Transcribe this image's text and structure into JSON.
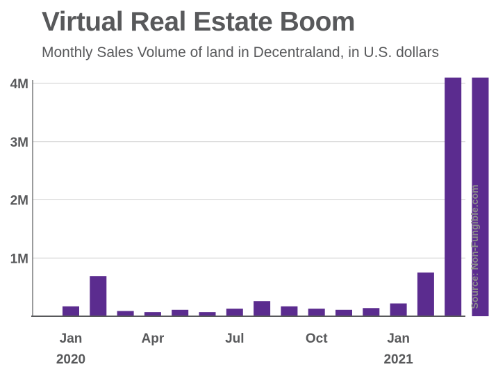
{
  "header": {
    "title": "Virtual Real Estate Boom",
    "subtitle": "Monthly Sales Volume of land in Decentraland, in U.S. dollars"
  },
  "source": "Source: Non-Fungible.com",
  "colors": {
    "bar": "#5b2c8f",
    "axis": "#58595b",
    "grid": "#d0d0d0",
    "text": "#58595b"
  },
  "chart_data": {
    "type": "bar",
    "title": "Virtual Real Estate Boom",
    "subtitle": "Monthly Sales Volume of land in Decentraland, in U.S. dollars",
    "categories": [
      "Dec 2019",
      "Jan 2020",
      "Feb 2020",
      "Mar 2020",
      "Apr 2020",
      "May 2020",
      "Jun 2020",
      "Jul 2020",
      "Aug 2020",
      "Sep 2020",
      "Oct 2020",
      "Nov 2020",
      "Dec 2020",
      "Jan 2021",
      "Feb 2021",
      "Mar 2021"
    ],
    "values": [
      170000,
      690000,
      90000,
      70000,
      110000,
      70000,
      130000,
      260000,
      170000,
      130000,
      110000,
      140000,
      220000,
      750000,
      4100000,
      4100000
    ],
    "ylim": [
      0,
      4000000
    ],
    "yticks": [
      {
        "value": 1000000,
        "label": "1M"
      },
      {
        "value": 2000000,
        "label": "2M"
      },
      {
        "value": 3000000,
        "label": "3M"
      },
      {
        "value": 4000000,
        "label": "4M"
      }
    ],
    "xticks": [
      {
        "index": 0.5,
        "label": "Jan",
        "year": "2020"
      },
      {
        "index": 3.5,
        "label": "Apr",
        "year": ""
      },
      {
        "index": 6.5,
        "label": "Jul",
        "year": ""
      },
      {
        "index": 9.5,
        "label": "Oct",
        "year": ""
      },
      {
        "index": 12.5,
        "label": "Jan",
        "year": "2021"
      }
    ],
    "grid": true
  }
}
